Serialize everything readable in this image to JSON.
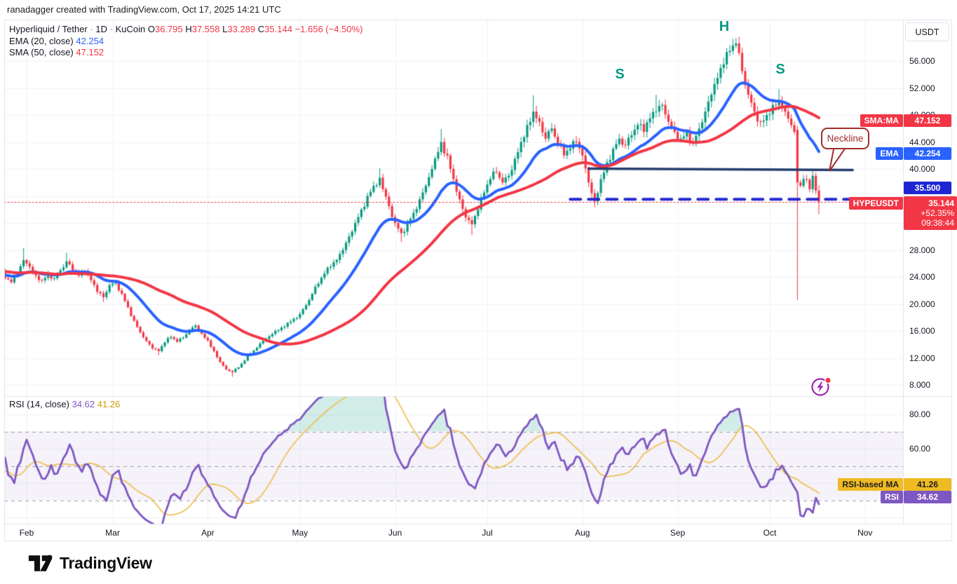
{
  "attribution": "ranadagger created with TradingView.com, Oct 17, 2025 14:21 UTC",
  "legend": {
    "symbol": {
      "name": "Hyperliquid / Tether",
      "sep": "·",
      "interval": "1D",
      "exchange": "KuCoin",
      "o_label": "O",
      "o": "36.795",
      "h_label": "H",
      "h": "37.558",
      "l_label": "L",
      "l": "33.289",
      "c_label": "C",
      "c": "35.144",
      "change": "−1.656 (−4.50%)"
    },
    "ema_line": {
      "label": "EMA (20, close)",
      "value": "42.254"
    },
    "sma_line": {
      "label": "SMA (50, close)",
      "value": "47.152"
    }
  },
  "rsi_legend": {
    "label": "RSI (14, close)",
    "rsi_value": "34.62",
    "ma_value": "41.26"
  },
  "price_axis": {
    "currency_button": "USDT",
    "ticks": [
      "56.000",
      "52.000",
      "48.000",
      "44.000",
      "40.000",
      "28.000",
      "24.000",
      "20.000",
      "16.000",
      "12.000",
      "8.000"
    ],
    "sma_tag": {
      "label": "SMA:MA",
      "value": "47.152"
    },
    "ema_tag": {
      "label": "EMA",
      "value": "42.254"
    },
    "level_tag": "35.500",
    "symbol_tag": {
      "label": "HYPEUSDT",
      "price": "35.144",
      "change_pct": "+52.35%",
      "countdown": "09:38:44"
    }
  },
  "rsi_axis": {
    "ticks": [
      "80.00",
      "60.00"
    ],
    "ma_tag": {
      "label": "RSI-based MA",
      "value": "41.26"
    },
    "rsi_tag": {
      "label": "RSI",
      "value": "34.62"
    }
  },
  "time_axis": {
    "months": [
      {
        "label": "Feb",
        "day": 0
      },
      {
        "label": "Mar",
        "day": 28
      },
      {
        "label": "Apr",
        "day": 59
      },
      {
        "label": "May",
        "day": 89
      },
      {
        "label": "Jun",
        "day": 120
      },
      {
        "label": "Jul",
        "day": 150
      },
      {
        "label": "Aug",
        "day": 181
      },
      {
        "label": "Sep",
        "day": 212
      },
      {
        "label": "Oct",
        "day": 242
      },
      {
        "label": "Nov",
        "day": 273
      }
    ]
  },
  "annotations": {
    "left_shoulder": "S",
    "head": "H",
    "right_shoulder": "S",
    "neckline_label": "Neckline"
  },
  "logo": {
    "text": "TradingView"
  },
  "colors": {
    "up": "#089981",
    "down": "#F23645",
    "ema": "#2962FF",
    "sma": "#F23645",
    "rsi": "#7E57C2",
    "rsi_ma": "#EFC050",
    "rsi_band": "rgba(126,87,194,0.08)",
    "overbought_fill": "rgba(8,153,129,0.18)",
    "neckline": "#253D6D",
    "support_dashed": "#2228D2",
    "level_tag_bg": "#1E26D3",
    "grid": "#f0f2f7",
    "frame": "#E0E3EB",
    "dashed_guide": "#9aa0ac",
    "callout": "#9F2D2D",
    "lightning": "#9C27B0",
    "dot_red": "#F23645",
    "yellow_tag_bg": "#EFBB23",
    "yellow_tag_text": "#1e1e1e"
  },
  "chart_data": {
    "type": "candlestick",
    "symbol": "HYPEUSDT",
    "exchange": "KuCoin",
    "interval": "1D",
    "date_range": "Jan 25 2025 – Oct 17 2025 (day 0 = Feb 1)",
    "price_axis_range": [
      6.5,
      61.5
    ],
    "grid_step": 4,
    "last_candle": {
      "o": 36.795,
      "h": 37.558,
      "l": 33.289,
      "c": 35.144,
      "change": -1.656,
      "change_pct": -4.5
    },
    "anchors": [
      [
        -7,
        23.8
      ],
      [
        -5,
        23.2
      ],
      [
        -3,
        24.5
      ],
      [
        -1,
        26.5
      ],
      [
        1,
        25.5
      ],
      [
        3,
        24.2
      ],
      [
        5,
        23.5
      ],
      [
        7,
        24.5
      ],
      [
        9,
        23.8
      ],
      [
        11,
        25.0
      ],
      [
        13,
        26.3
      ],
      [
        15,
        25.0
      ],
      [
        17,
        24.2
      ],
      [
        19,
        24.8
      ],
      [
        21,
        23.5
      ],
      [
        23,
        21.8
      ],
      [
        25,
        21.0
      ],
      [
        27,
        22.8
      ],
      [
        29,
        23.2
      ],
      [
        31,
        21.5
      ],
      [
        33,
        19.5
      ],
      [
        35,
        17.5
      ],
      [
        37,
        15.8
      ],
      [
        39,
        14.5
      ],
      [
        41,
        13.4
      ],
      [
        43,
        13.0
      ],
      [
        45,
        14.3
      ],
      [
        47,
        15.1
      ],
      [
        49,
        14.4
      ],
      [
        51,
        15.0
      ],
      [
        53,
        16.2
      ],
      [
        55,
        16.8
      ],
      [
        57,
        15.6
      ],
      [
        59,
        14.6
      ],
      [
        61,
        13.0
      ],
      [
        63,
        11.4
      ],
      [
        65,
        10.3
      ],
      [
        67,
        9.9
      ],
      [
        69,
        10.6
      ],
      [
        71,
        11.6
      ],
      [
        73,
        12.6
      ],
      [
        75,
        13.5
      ],
      [
        77,
        14.5
      ],
      [
        79,
        15.2
      ],
      [
        81,
        16.0
      ],
      [
        83,
        16.5
      ],
      [
        85,
        17.2
      ],
      [
        87,
        17.8
      ],
      [
        89,
        18.5
      ],
      [
        91,
        19.8
      ],
      [
        93,
        21.5
      ],
      [
        95,
        23.0
      ],
      [
        97,
        24.5
      ],
      [
        99,
        25.5
      ],
      [
        101,
        26.5
      ],
      [
        103,
        28.0
      ],
      [
        105,
        30.0
      ],
      [
        107,
        32.0
      ],
      [
        109,
        34.0
      ],
      [
        111,
        36.0
      ],
      [
        113,
        37.5
      ],
      [
        115,
        38.7
      ],
      [
        116,
        37.0
      ],
      [
        118,
        34.5
      ],
      [
        120,
        32.0
      ],
      [
        122,
        30.5
      ],
      [
        124,
        32.0
      ],
      [
        126,
        33.5
      ],
      [
        128,
        35.5
      ],
      [
        130,
        37.5
      ],
      [
        132,
        40.0
      ],
      [
        134,
        42.5
      ],
      [
        135,
        44.0
      ],
      [
        137,
        42.0
      ],
      [
        139,
        38.5
      ],
      [
        141,
        35.5
      ],
      [
        143,
        32.8
      ],
      [
        145,
        31.8
      ],
      [
        147,
        34.0
      ],
      [
        149,
        36.5
      ],
      [
        151,
        38.5
      ],
      [
        153,
        39.5
      ],
      [
        155,
        38.0
      ],
      [
        157,
        39.0
      ],
      [
        159,
        41.5
      ],
      [
        161,
        44.0
      ],
      [
        163,
        46.5
      ],
      [
        165,
        48.5
      ],
      [
        167,
        47.0
      ],
      [
        169,
        44.5
      ],
      [
        171,
        46.0
      ],
      [
        173,
        43.5
      ],
      [
        175,
        42.0
      ],
      [
        177,
        43.0
      ],
      [
        179,
        44.0
      ],
      [
        181,
        42.0
      ],
      [
        183,
        38.0
      ],
      [
        185,
        35.2
      ],
      [
        187,
        38.5
      ],
      [
        189,
        41.0
      ],
      [
        191,
        43.0
      ],
      [
        193,
        44.5
      ],
      [
        195,
        43.5
      ],
      [
        197,
        45.0
      ],
      [
        199,
        46.5
      ],
      [
        201,
        45.5
      ],
      [
        203,
        47.5
      ],
      [
        205,
        48.5
      ],
      [
        207,
        49.5
      ],
      [
        209,
        47.0
      ],
      [
        211,
        45.5
      ],
      [
        213,
        44.5
      ],
      [
        215,
        45.5
      ],
      [
        217,
        44.0
      ],
      [
        219,
        46.0
      ],
      [
        221,
        48.5
      ],
      [
        223,
        51.0
      ],
      [
        225,
        53.5
      ],
      [
        227,
        55.5
      ],
      [
        229,
        57.5
      ],
      [
        231,
        58.6
      ],
      [
        233,
        54.5
      ],
      [
        235,
        51.0
      ],
      [
        237,
        48.5
      ],
      [
        239,
        47.0
      ],
      [
        241,
        48.0
      ],
      [
        243,
        49.5
      ],
      [
        245,
        50.0
      ],
      [
        247,
        48.5
      ],
      [
        249,
        46.5
      ],
      [
        250,
        45.5
      ],
      [
        251,
        38.0
      ],
      [
        252,
        37.5
      ],
      [
        253,
        38.5
      ],
      [
        255,
        37.0
      ],
      [
        256,
        39.0
      ],
      [
        257,
        36.8
      ],
      [
        258,
        35.144
      ]
    ],
    "spikes": [
      {
        "d": -1,
        "h": 28.3
      },
      {
        "d": 13,
        "h": 27.6
      },
      {
        "d": 25,
        "l": 20.3
      },
      {
        "d": 43,
        "l": 12.4
      },
      {
        "d": 67,
        "l": 9.2
      },
      {
        "d": 115,
        "h": 40.1
      },
      {
        "d": 122,
        "l": 29.2
      },
      {
        "d": 135,
        "h": 45.9
      },
      {
        "d": 145,
        "l": 30.2
      },
      {
        "d": 165,
        "h": 50.9
      },
      {
        "d": 185,
        "l": 34.3
      },
      {
        "d": 205,
        "h": 51.0
      },
      {
        "d": 231,
        "h": 59.4
      },
      {
        "d": 245,
        "h": 51.8
      }
    ],
    "special_candles": [
      {
        "d": 251,
        "o": 45.8,
        "h": 46.4,
        "l": 20.6,
        "c": 38.0
      },
      {
        "d": 258,
        "o": 36.795,
        "h": 37.558,
        "l": 33.289,
        "c": 35.144
      }
    ],
    "indicators": [
      {
        "type": "ema",
        "length": 20,
        "last_value": 42.254
      },
      {
        "type": "sma",
        "length": 50,
        "last_value": 47.152
      },
      {
        "type": "rsi",
        "length": 14,
        "last_value": 34.62,
        "ma_length": 14,
        "ma_last_value": 41.26,
        "levels": [
          70,
          50,
          30
        ],
        "band": [
          30,
          70
        ]
      }
    ],
    "levels": {
      "neckline": {
        "p1": 40.05,
        "p2": 39.85,
        "d1": 183,
        "d2": 269
      },
      "support_dashed": {
        "price": 35.5,
        "d1": 177,
        "d2": 284
      },
      "current_price_line": 35.144
    }
  }
}
